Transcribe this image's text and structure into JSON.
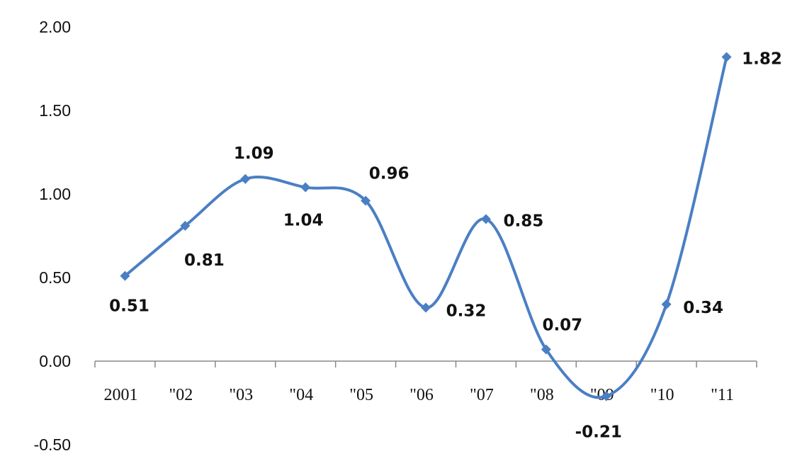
{
  "chart_data": {
    "type": "line",
    "categories": [
      "2001",
      "\"02",
      "\"03",
      "\"04",
      "\"05",
      "\"06",
      "\"07",
      "\"08",
      "\"09",
      "\"10",
      "\"11"
    ],
    "series": [
      {
        "values": [
          0.51,
          0.81,
          1.09,
          1.04,
          0.96,
          0.32,
          0.85,
          0.07,
          -0.21,
          0.34,
          1.82
        ]
      }
    ],
    "data_labels": [
      "0.51",
      "0.81",
      "1.09",
      "1.04",
      "0.96",
      "0.32",
      "0.85",
      "0.07",
      "-0.21",
      "0.34",
      "1.82"
    ],
    "yticks": [
      "2.00",
      "1.50",
      "1.00",
      "0.50",
      "0.00",
      "-0.50"
    ],
    "ylim": [
      -0.5,
      2.0
    ],
    "smooth": true,
    "marker": "diamond",
    "grid": false,
    "legend": "none",
    "title": "",
    "xlabel": "",
    "ylabel": "",
    "colors": {
      "line": "#4a7fc4",
      "marker": "#4a7fc4",
      "axis": "#888888",
      "text": "#111111"
    }
  }
}
